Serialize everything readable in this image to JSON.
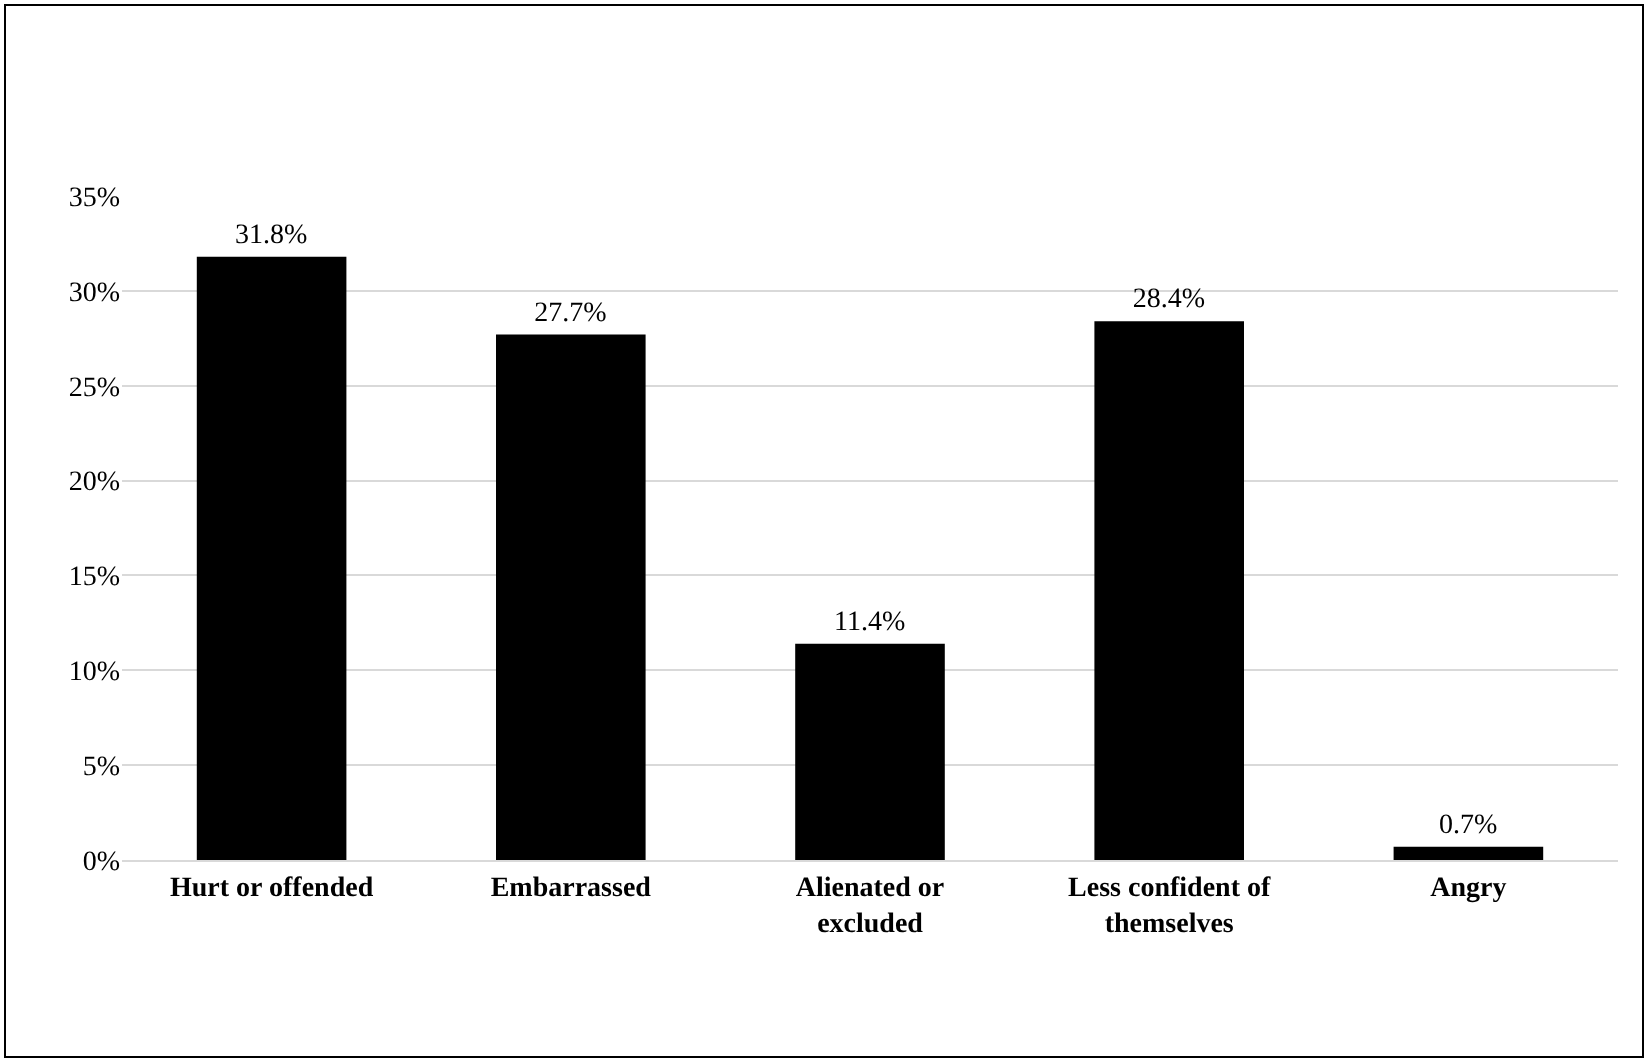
{
  "chart_data": {
    "type": "bar",
    "categories": [
      "Hurt or offended",
      "Embarrassed",
      "Alienated or excluded",
      "Less confident of themselves",
      "Angry"
    ],
    "values": [
      31.8,
      27.7,
      11.4,
      28.4,
      0.7
    ],
    "value_labels": [
      "31.8%",
      "27.7%",
      "11.4%",
      "28.4%",
      "0.7%"
    ],
    "color": "#000000",
    "ylim": [
      0,
      35
    ],
    "yticks": [
      {
        "value": 0,
        "label": "0%"
      },
      {
        "value": 5,
        "label": "5%"
      },
      {
        "value": 10,
        "label": "10%"
      },
      {
        "value": 15,
        "label": "15%"
      },
      {
        "value": 20,
        "label": "20%"
      },
      {
        "value": 25,
        "label": "25%"
      },
      {
        "value": 30,
        "label": "30%"
      },
      {
        "value": 35,
        "label": "35%"
      }
    ],
    "grid": "y"
  }
}
